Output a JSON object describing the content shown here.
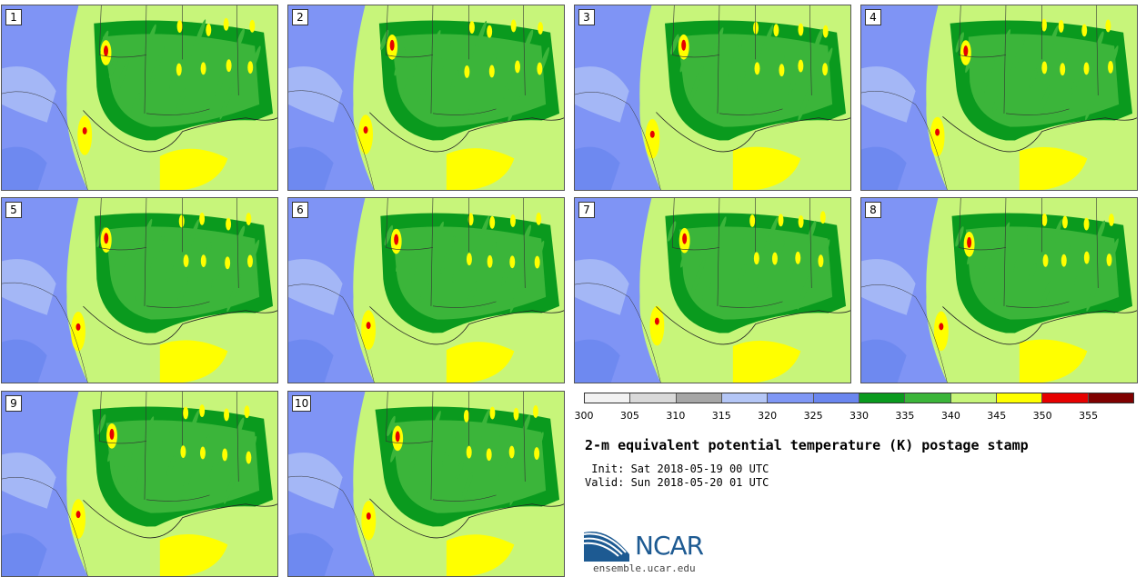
{
  "panels": [
    {
      "label": "1"
    },
    {
      "label": "2"
    },
    {
      "label": "3"
    },
    {
      "label": "4"
    },
    {
      "label": "5"
    },
    {
      "label": "6"
    },
    {
      "label": "7"
    },
    {
      "label": "8"
    },
    {
      "label": "9"
    },
    {
      "label": "10"
    }
  ],
  "legend": {
    "ticks": [
      "300",
      "305",
      "310",
      "315",
      "320",
      "325",
      "330",
      "335",
      "340",
      "345",
      "350",
      "355"
    ],
    "colors": [
      "#f2f2f2",
      "#d9d9d9",
      "#a6a6a6",
      "#b4c6f6",
      "#7f97f5",
      "#6a86ef",
      "#0a9a1e",
      "#3bb53a",
      "#c7f57a",
      "#ffff00",
      "#e60000",
      "#7f0000"
    ]
  },
  "title": "2-m equivalent potential temperature (K) postage stamp",
  "init": " Init: Sat 2018-05-19 00 UTC",
  "valid": "Valid: Sun 2018-05-20 01 UTC",
  "logo": {
    "text": "NCAR",
    "url": "ensemble.ucar.edu"
  }
}
